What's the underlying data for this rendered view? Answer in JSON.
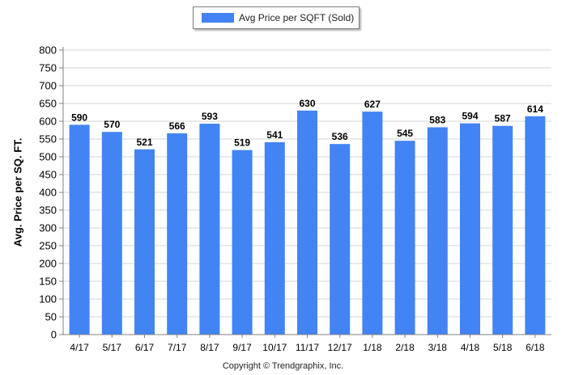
{
  "chart_data": {
    "type": "bar",
    "title": "",
    "xlabel": "",
    "ylabel": "Avg. Price per SQ. FT.",
    "categories": [
      "4/17",
      "5/17",
      "6/17",
      "7/17",
      "8/17",
      "9/17",
      "10/17",
      "11/17",
      "12/17",
      "1/18",
      "2/18",
      "3/18",
      "4/18",
      "5/18",
      "6/18"
    ],
    "series": [
      {
        "name": "Avg Price per SQFT (Sold)",
        "color": "#4284f3",
        "values": [
          590,
          570,
          521,
          566,
          593,
          519,
          541,
          630,
          536,
          627,
          545,
          583,
          594,
          587,
          614
        ]
      }
    ],
    "ylim": [
      0,
      800
    ],
    "yticks": [
      0,
      50,
      100,
      150,
      200,
      250,
      300,
      350,
      400,
      450,
      500,
      550,
      600,
      650,
      700,
      750,
      800
    ],
    "grid": true,
    "legend_position": "top-center",
    "data_labels": true
  },
  "footer": {
    "copyright": "Copyright © Trendgraphix, Inc."
  }
}
